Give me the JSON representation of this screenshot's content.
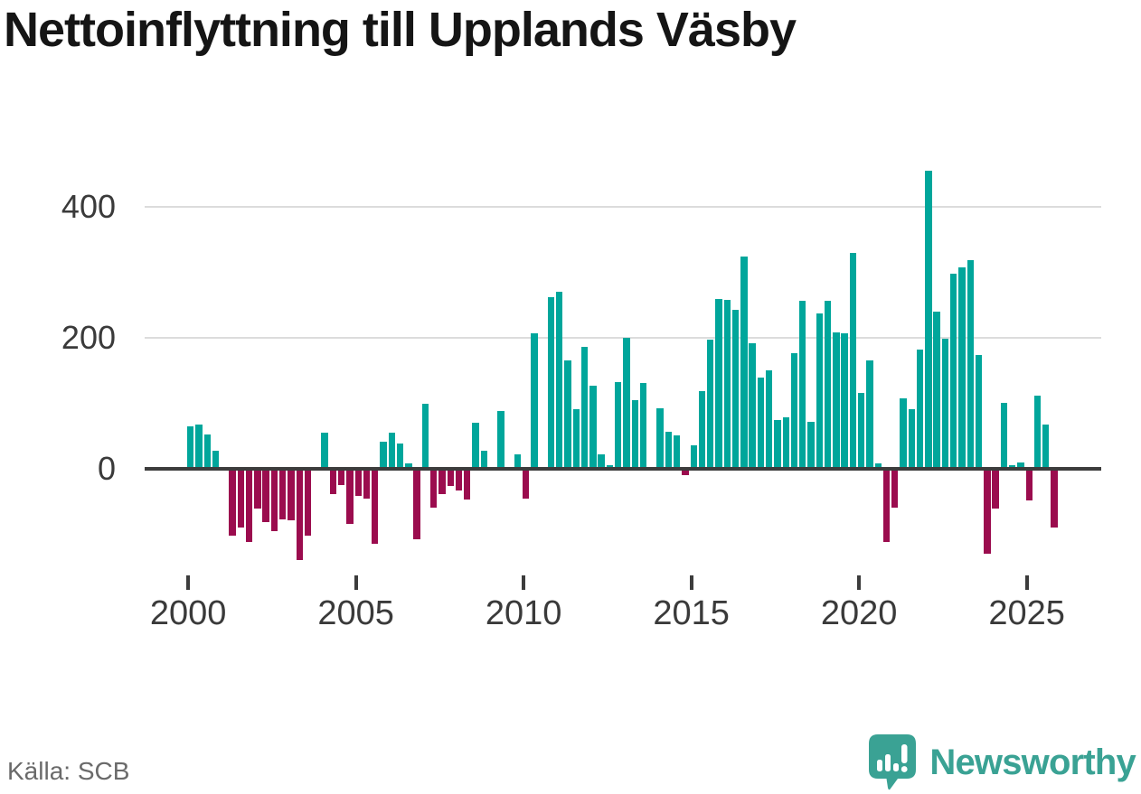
{
  "title": "Nettoinflyttning till Upplands Väsby",
  "source": "Källa: SCB",
  "brand": {
    "name": "Newsworthy",
    "icon": "speech-bubble-bar-chart-icon",
    "color": "#3aa294"
  },
  "chart_data": {
    "type": "bar",
    "title": "Nettoinflyttning till Upplands Väsby",
    "frequency": "quarterly",
    "start_period": "2000Q1",
    "end_period": "2025Q4",
    "values": [
      65,
      68,
      52,
      28,
      0,
      -102,
      -90,
      -112,
      -61,
      -81,
      -95,
      -77,
      -79,
      -139,
      -102,
      0,
      55,
      -39,
      -25,
      -84,
      -41,
      -45,
      -114,
      41,
      55,
      39,
      8,
      -108,
      99,
      -59,
      -39,
      -26,
      -33,
      -47,
      70,
      28,
      0,
      88,
      0,
      22,
      -46,
      207,
      0,
      262,
      270,
      165,
      91,
      186,
      127,
      22,
      6,
      133,
      200,
      105,
      131,
      0,
      92,
      57,
      51,
      -10,
      36,
      119,
      197,
      259,
      258,
      243,
      324,
      192,
      139,
      150,
      74,
      79,
      177,
      256,
      72,
      237,
      256,
      208,
      207,
      330,
      116,
      165,
      8,
      -112,
      -59,
      108,
      91,
      182,
      455,
      240,
      198,
      298,
      308,
      319,
      174,
      -130,
      -61,
      101,
      6,
      10,
      -48,
      112,
      68,
      -90
    ],
    "yticks": [
      0,
      200,
      400
    ],
    "xticks": [
      2000,
      2005,
      2010,
      2015,
      2020,
      2025
    ],
    "ylim": [
      -155,
      470
    ],
    "positive_color": "#00a69b",
    "negative_color": "#9b0c4e",
    "grid": "horizontal-only",
    "legend": "none",
    "xlabel": "",
    "ylabel": ""
  }
}
